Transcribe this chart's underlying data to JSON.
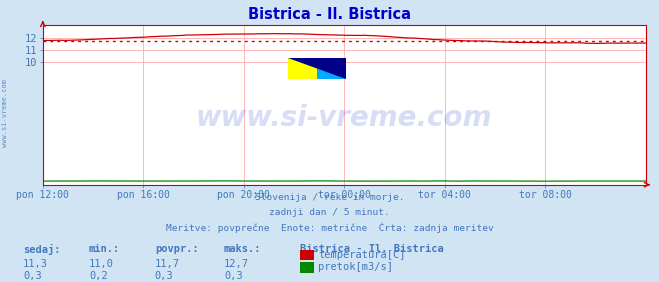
{
  "title": "Bistrica - Il. Bistrica",
  "title_color": "#0000cc",
  "bg_color": "#d0e4f4",
  "plot_bg_color": "#ffffff",
  "grid_color": "#ffaaaa",
  "axis_color": "#cc0000",
  "tick_color": "#4477bb",
  "text_color": "#4477bb",
  "watermark_text": "www.si-vreme.com",
  "watermark_color": "#2244cc",
  "watermark_alpha": 0.18,
  "x_tick_labels": [
    "pon 12:00",
    "pon 16:00",
    "pon 20:00",
    "tor 00:00",
    "tor 04:00",
    "tor 08:00"
  ],
  "x_tick_positions": [
    0.0,
    0.1667,
    0.3333,
    0.5,
    0.6667,
    0.8333
  ],
  "y_ticks": [
    10,
    11,
    12
  ],
  "ylim": [
    0,
    13.0
  ],
  "xlim": [
    0,
    1
  ],
  "avg_line_value": 11.7,
  "avg_line_color": "#cc0000",
  "temp_line_color": "#cc0000",
  "flow_line_color": "#008800",
  "subtitle_lines": [
    "Slovenija / reke in morje.",
    "zadnji dan / 5 minut.",
    "Meritve: povprečne  Enote: metrične  Črta: zadnja meritev"
  ],
  "table_headers": [
    "sedaj:",
    "min.:",
    "povpr.:",
    "maks.:"
  ],
  "table_row1": [
    "11,3",
    "11,0",
    "11,7",
    "12,7"
  ],
  "table_row2": [
    "0,3",
    "0,2",
    "0,3",
    "0,3"
  ],
  "legend_title": "Bistrica - Il. Bistrica",
  "legend_items": [
    {
      "label": "temperatura[C]",
      "color": "#cc0000"
    },
    {
      "label": "pretok[m3/s]",
      "color": "#008800"
    }
  ],
  "left_label": "www.si-vreme.com",
  "left_label_color": "#4477bb",
  "logo_colors": [
    "#ffff00",
    "#00aaff",
    "#000088"
  ]
}
